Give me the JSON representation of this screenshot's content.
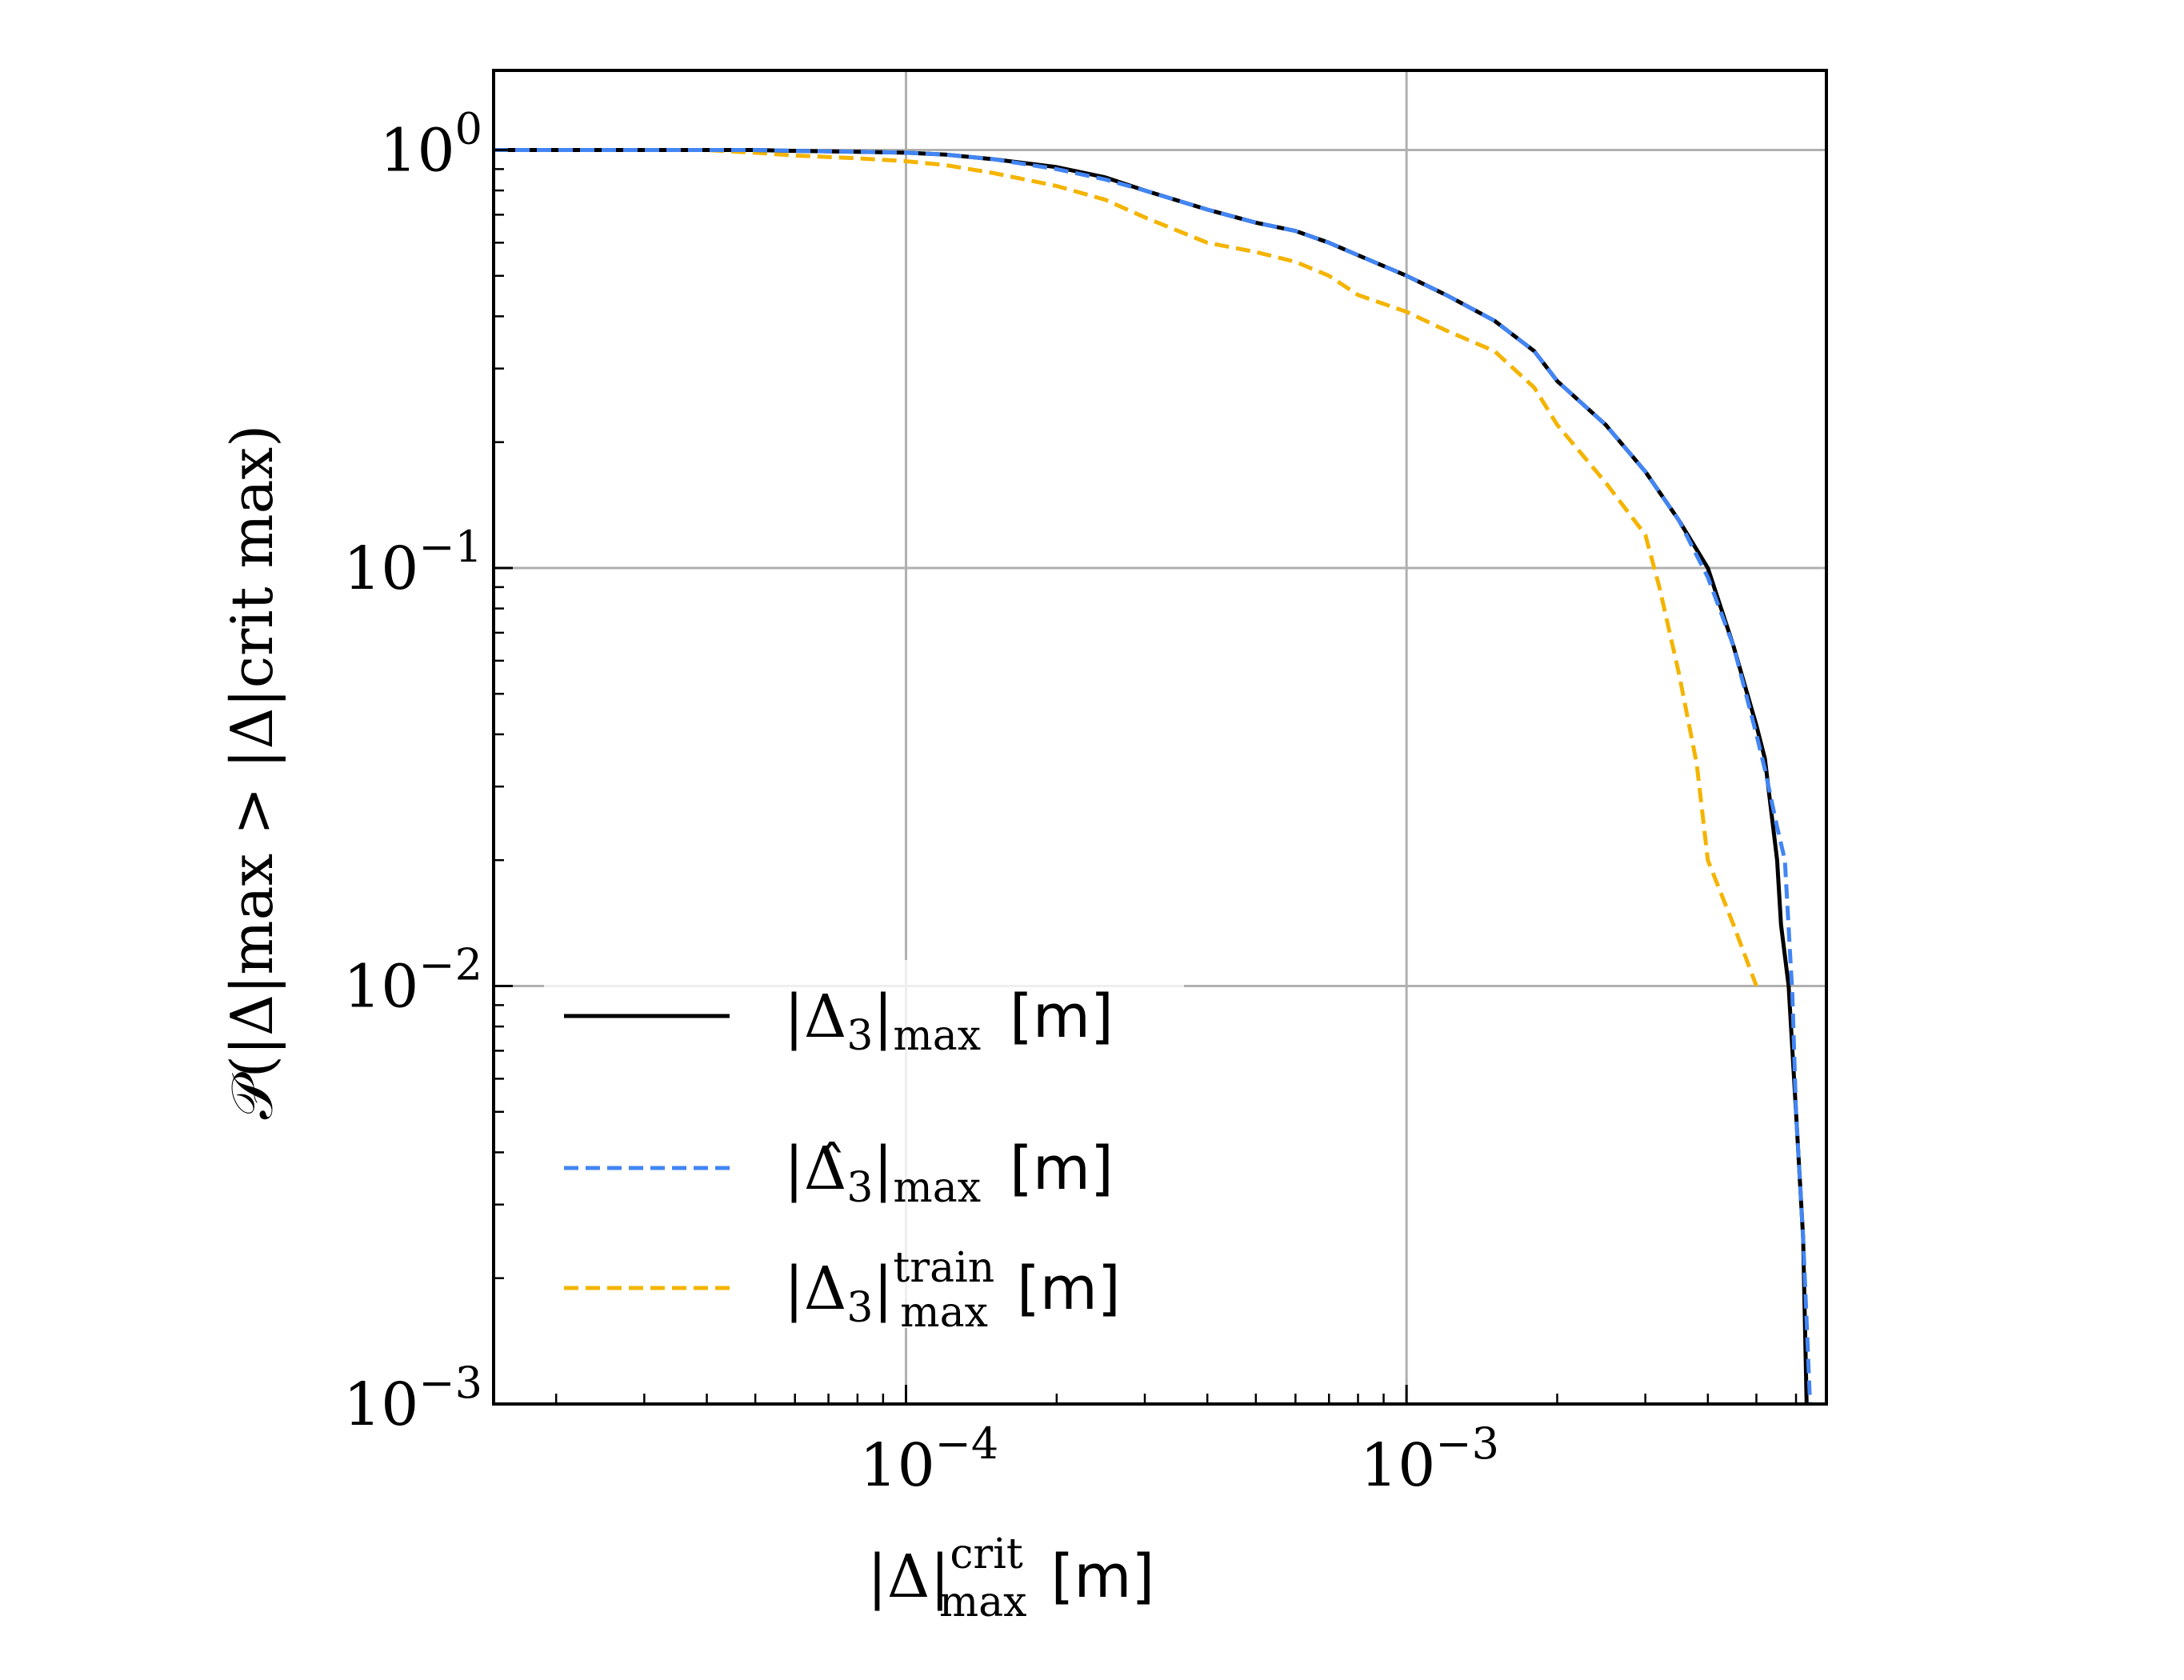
{
  "chart_data": {
    "type": "line",
    "xscale": "log",
    "yscale": "log",
    "xlim": [
      1.5e-05,
      0.0069
    ],
    "ylim": [
      0.001,
      1.55
    ],
    "grid": true,
    "xlabel": {
      "main": "|Δ|",
      "sup": "crit",
      "sub": "max",
      "unit": "[m]"
    },
    "ylabel": {
      "text": "𝒫(|Δ|max > |Δ|crit max)"
    },
    "xticks": [
      {
        "value": 0.0001,
        "base": "10",
        "exp": "−4"
      },
      {
        "value": 0.001,
        "base": "10",
        "exp": "−3"
      }
    ],
    "yticks": [
      {
        "value": 1,
        "base": "10",
        "exp": "0"
      },
      {
        "value": 0.1,
        "base": "10",
        "exp": "−1"
      },
      {
        "value": 0.01,
        "base": "10",
        "exp": "−2"
      },
      {
        "value": 0.001,
        "base": "10",
        "exp": "−3"
      }
    ],
    "legend_position": "lower-left",
    "series": [
      {
        "name": "|Δ3|max [m]",
        "legend": {
          "main": "|Δ",
          "sub1": "3",
          "bar": "|",
          "sub2": "max",
          "unit": "[m]"
        },
        "color": "#000000",
        "style": "solid",
        "x": [
          1.5e-05,
          2e-05,
          3e-05,
          4e-05,
          5e-05,
          6e-05,
          8e-05,
          0.0001,
          0.00012,
          0.00015,
          0.0002,
          0.00025,
          0.0003,
          0.0004,
          0.0005,
          0.0006,
          0.0007,
          0.0008,
          0.001,
          0.0012,
          0.0015,
          0.0018,
          0.002,
          0.0025,
          0.003,
          0.0035,
          0.004,
          0.0045,
          0.005,
          0.0052,
          0.0055,
          0.0056,
          0.0058,
          0.006,
          0.0062,
          0.0063
        ],
        "y": [
          1.0,
          1.0,
          1.0,
          1.0,
          1.0,
          0.995,
          0.99,
          0.985,
          0.975,
          0.95,
          0.91,
          0.86,
          0.8,
          0.72,
          0.67,
          0.64,
          0.6,
          0.56,
          0.5,
          0.45,
          0.39,
          0.33,
          0.28,
          0.22,
          0.17,
          0.13,
          0.1,
          0.065,
          0.042,
          0.035,
          0.02,
          0.014,
          0.01,
          0.005,
          0.0025,
          0.001
        ]
      },
      {
        "name": "|Δ̂3|max [m]",
        "legend": {
          "main": "|Δ̂",
          "sub1": "3",
          "bar": "|",
          "sub2": "max",
          "unit": "[m]"
        },
        "color": "#4285f4",
        "style": "dashed",
        "x": [
          1.5e-05,
          2e-05,
          3e-05,
          4e-05,
          5e-05,
          6e-05,
          8e-05,
          0.0001,
          0.00012,
          0.00015,
          0.0002,
          0.00025,
          0.0003,
          0.0004,
          0.0005,
          0.0006,
          0.0007,
          0.0008,
          0.001,
          0.0012,
          0.0015,
          0.0018,
          0.002,
          0.0025,
          0.003,
          0.0035,
          0.004,
          0.0045,
          0.005,
          0.0052,
          0.0055,
          0.0057,
          0.0059,
          0.006,
          0.0062,
          0.0064
        ],
        "y": [
          1.0,
          1.0,
          1.0,
          1.0,
          1.0,
          0.995,
          0.99,
          0.985,
          0.975,
          0.95,
          0.9,
          0.85,
          0.8,
          0.72,
          0.67,
          0.64,
          0.6,
          0.56,
          0.5,
          0.45,
          0.39,
          0.33,
          0.28,
          0.22,
          0.17,
          0.13,
          0.095,
          0.065,
          0.04,
          0.033,
          0.024,
          0.02,
          0.0095,
          0.005,
          0.0025,
          0.001
        ]
      },
      {
        "name": "|Δ3|train max [m]",
        "legend": {
          "main": "|Δ",
          "sub1": "3",
          "bar": "|",
          "sub2": "max",
          "sup2": "train",
          "unit": "[m]"
        },
        "color": "#f4b400",
        "style": "dashed",
        "x": [
          1.5e-05,
          2e-05,
          3e-05,
          4e-05,
          5e-05,
          6e-05,
          8e-05,
          0.0001,
          0.00012,
          0.00015,
          0.0002,
          0.00025,
          0.0003,
          0.0004,
          0.0005,
          0.0006,
          0.0007,
          0.0008,
          0.001,
          0.0012,
          0.0015,
          0.0018,
          0.002,
          0.0025,
          0.003,
          0.0032,
          0.0035,
          0.0038,
          0.004,
          0.0045,
          0.005
        ],
        "y": [
          1.0,
          1.0,
          1.0,
          1.0,
          0.985,
          0.97,
          0.955,
          0.94,
          0.92,
          0.88,
          0.82,
          0.76,
          0.69,
          0.6,
          0.57,
          0.54,
          0.5,
          0.45,
          0.41,
          0.37,
          0.33,
          0.27,
          0.22,
          0.16,
          0.12,
          0.09,
          0.056,
          0.034,
          0.02,
          0.014,
          0.01
        ]
      }
    ]
  }
}
